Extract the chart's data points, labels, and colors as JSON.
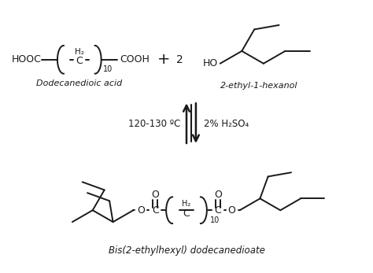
{
  "bg_color": "#ffffff",
  "line_color": "#1a1a1a",
  "text_color": "#1a1a1a",
  "reactant1_label": "Dodecanedioic acid",
  "reactant2_label": "2-ethyl-1-hexanol",
  "product_label": "Bis(2-ethylhexyl) dodecanedioate",
  "condition_left": "120-130 ºC",
  "condition_right": "2% H₂SO₄"
}
